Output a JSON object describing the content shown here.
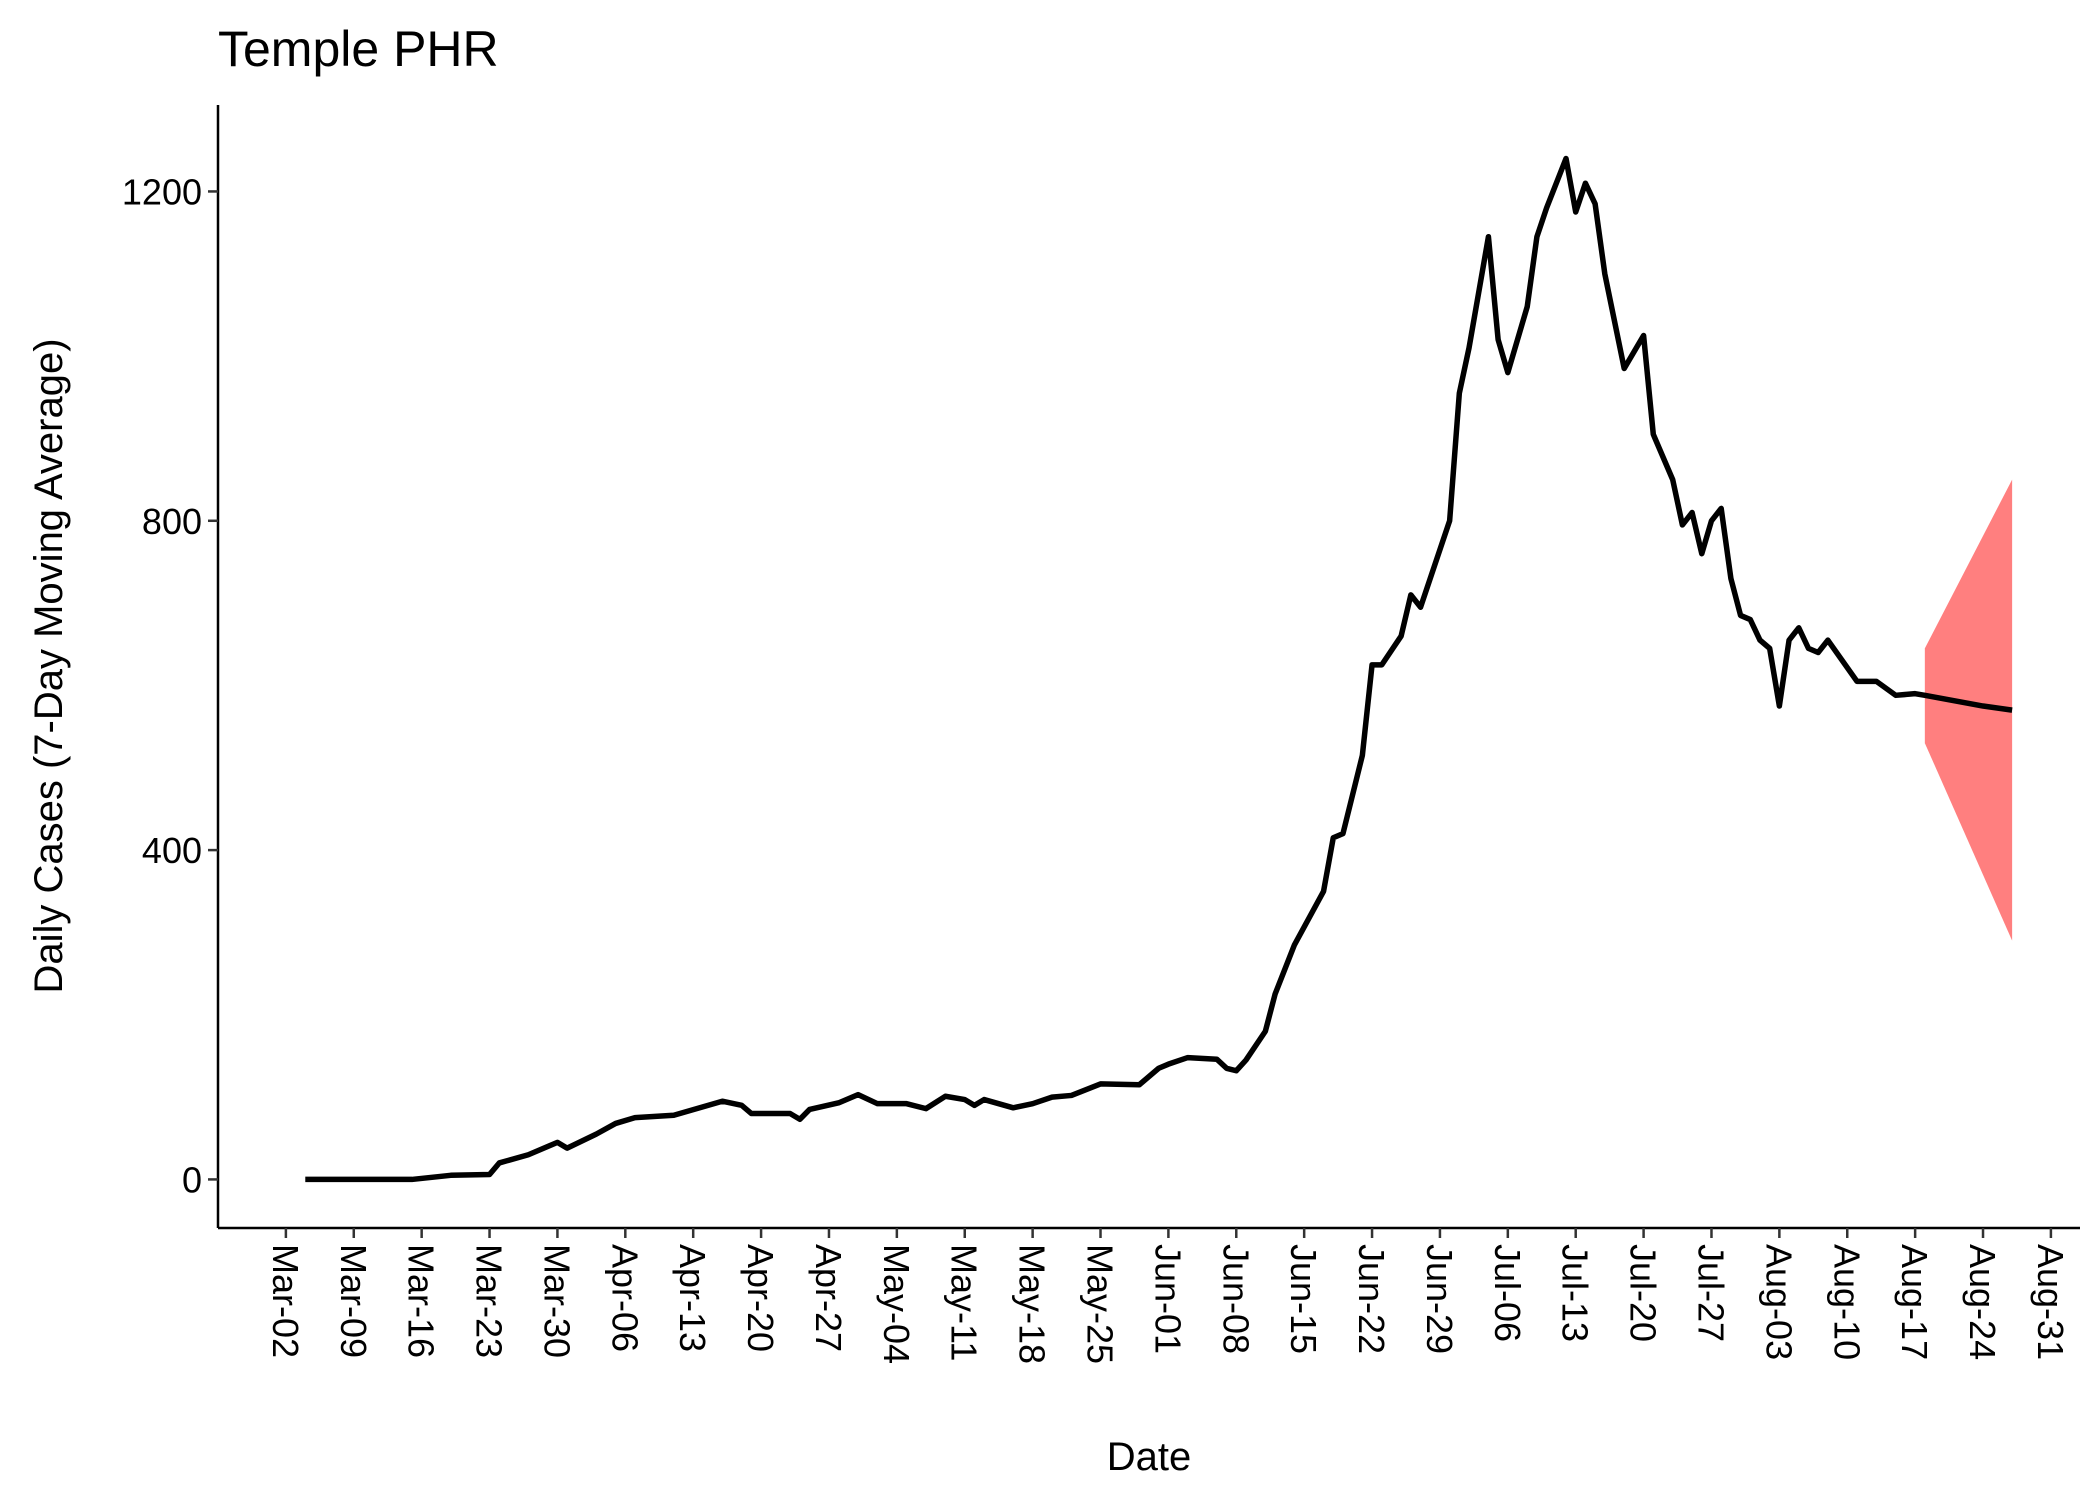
{
  "chart_data": {
    "type": "line",
    "title": "Temple PHR",
    "x_label": "Date",
    "y_label": "Daily Cases (7-Day Moving Average)",
    "series": [
      {
        "color": "#000000",
        "x": [
          "Mar-04",
          "Mar-15",
          "Mar-19",
          "Mar-23",
          "Mar-24",
          "Mar-27",
          "Mar-30",
          "Mar-31",
          "Apr-03",
          "Apr-05",
          "Apr-07",
          "Apr-11",
          "Apr-16",
          "Apr-18",
          "Apr-19",
          "Apr-23",
          "Apr-24",
          "Apr-25",
          "Apr-28",
          "Apr-30",
          "May-02",
          "May-05",
          "May-07",
          "May-09",
          "May-11",
          "May-12",
          "May-13",
          "May-16",
          "May-18",
          "May-20",
          "May-22",
          "May-25",
          "May-29",
          "May-31",
          "Jun-01",
          "Jun-03",
          "Jun-06",
          "Jun-07",
          "Jun-08",
          "Jun-09",
          "Jun-11",
          "Jun-12",
          "Jun-14",
          "Jun-17",
          "Jun-18",
          "Jun-19",
          "Jun-21",
          "Jun-22",
          "Jun-23",
          "Jun-25",
          "Jun-26",
          "Jun-27",
          "Jun-30",
          "Jul-01",
          "Jul-02",
          "Jul-04",
          "Jul-05",
          "Jul-06",
          "Jul-08",
          "Jul-09",
          "Jul-10",
          "Jul-12",
          "Jul-13",
          "Jul-14",
          "Jul-15",
          "Jul-16",
          "Jul-18",
          "Jul-20",
          "Jul-21",
          "Jul-23",
          "Jul-24",
          "Jul-25",
          "Jul-26",
          "Jul-27",
          "Jul-28",
          "Jul-29",
          "Jul-30",
          "Jul-31",
          "Aug-01",
          "Aug-02",
          "Aug-03",
          "Aug-04",
          "Aug-05",
          "Aug-06",
          "Aug-07",
          "Aug-08",
          "Aug-11",
          "Aug-13",
          "Aug-15",
          "Aug-17",
          "Aug-18",
          "Aug-24",
          "Aug-27"
        ],
        "values": [
          0,
          0,
          5,
          6,
          20,
          30,
          45,
          38,
          55,
          68,
          75,
          78,
          95,
          90,
          80,
          80,
          73,
          85,
          93,
          103,
          92,
          92,
          86,
          101,
          97,
          90,
          97,
          87,
          92,
          100,
          102,
          116,
          115,
          135,
          140,
          148,
          146,
          135,
          132,
          145,
          180,
          225,
          285,
          350,
          415,
          420,
          515,
          625,
          625,
          660,
          710,
          695,
          800,
          955,
          1010,
          1145,
          1020,
          980,
          1060,
          1145,
          1180,
          1240,
          1175,
          1210,
          1185,
          1100,
          985,
          1025,
          905,
          850,
          795,
          810,
          760,
          800,
          815,
          730,
          685,
          680,
          655,
          645,
          575,
          655,
          670,
          645,
          640,
          655,
          605,
          605,
          588,
          590,
          588,
          575,
          570
        ]
      }
    ],
    "ribbon": {
      "color": "#ff7f7f",
      "x": [
        "Aug-18",
        "Aug-27"
      ],
      "lower": [
        530,
        290
      ],
      "upper": [
        645,
        850
      ]
    },
    "xlim": [
      "Feb-24",
      "Sep-03"
    ],
    "xticks": [
      "Mar-02",
      "Mar-09",
      "Mar-16",
      "Mar-23",
      "Mar-30",
      "Apr-06",
      "Apr-13",
      "Apr-20",
      "Apr-27",
      "May-04",
      "May-11",
      "May-18",
      "May-25",
      "Jun-01",
      "Jun-08",
      "Jun-15",
      "Jun-22",
      "Jun-29",
      "Jul-06",
      "Jul-13",
      "Jul-20",
      "Jul-27",
      "Aug-03",
      "Aug-10",
      "Aug-17",
      "Aug-24",
      "Aug-31"
    ],
    "ylim": [
      -59,
      1305
    ],
    "yticks": [
      0,
      400,
      800,
      1200
    ],
    "grid": false
  }
}
